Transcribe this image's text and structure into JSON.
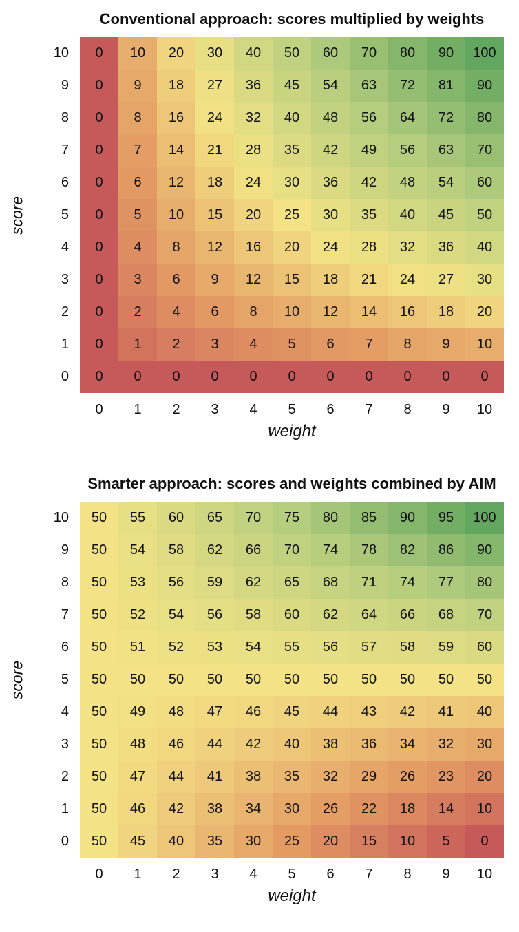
{
  "colormap": {
    "stops": [
      {
        "t": 0.0,
        "color": "#c65959"
      },
      {
        "t": 0.25,
        "color": "#e39a63"
      },
      {
        "t": 0.5,
        "color": "#f3e386"
      },
      {
        "t": 0.75,
        "color": "#b5cd7e"
      },
      {
        "t": 1.0,
        "color": "#63a65f"
      }
    ]
  },
  "chart_data": [
    {
      "type": "heatmap",
      "title": "Conventional approach: scores multiplied by weights",
      "xlabel": "weight",
      "ylabel": "score",
      "row_labels": [
        10,
        9,
        8,
        7,
        6,
        5,
        4,
        3,
        2,
        1,
        0
      ],
      "col_labels": [
        0,
        1,
        2,
        3,
        4,
        5,
        6,
        7,
        8,
        9,
        10
      ],
      "vmin": 0,
      "vmax": 100,
      "color_scale": "sqrt",
      "legend": "none",
      "grid": "off",
      "values": [
        [
          0,
          10,
          20,
          30,
          40,
          50,
          60,
          70,
          80,
          90,
          100
        ],
        [
          0,
          9,
          18,
          27,
          36,
          45,
          54,
          63,
          72,
          81,
          90
        ],
        [
          0,
          8,
          16,
          24,
          32,
          40,
          48,
          56,
          64,
          72,
          80
        ],
        [
          0,
          7,
          14,
          21,
          28,
          35,
          42,
          49,
          56,
          63,
          70
        ],
        [
          0,
          6,
          12,
          18,
          24,
          30,
          36,
          42,
          48,
          54,
          60
        ],
        [
          0,
          5,
          10,
          15,
          20,
          25,
          30,
          35,
          40,
          45,
          50
        ],
        [
          0,
          4,
          8,
          12,
          16,
          20,
          24,
          28,
          32,
          36,
          40
        ],
        [
          0,
          3,
          6,
          9,
          12,
          15,
          18,
          21,
          24,
          27,
          30
        ],
        [
          0,
          2,
          4,
          6,
          8,
          10,
          12,
          14,
          16,
          18,
          20
        ],
        [
          0,
          1,
          2,
          3,
          4,
          5,
          6,
          7,
          8,
          9,
          10
        ],
        [
          0,
          0,
          0,
          0,
          0,
          0,
          0,
          0,
          0,
          0,
          0
        ]
      ]
    },
    {
      "type": "heatmap",
      "title": "Smarter approach: scores and weights combined by AIM",
      "xlabel": "weight",
      "ylabel": "score",
      "row_labels": [
        10,
        9,
        8,
        7,
        6,
        5,
        4,
        3,
        2,
        1,
        0
      ],
      "col_labels": [
        0,
        1,
        2,
        3,
        4,
        5,
        6,
        7,
        8,
        9,
        10
      ],
      "vmin": 0,
      "vmax": 100,
      "color_scale": "linear",
      "legend": "none",
      "grid": "off",
      "values": [
        [
          50,
          55,
          60,
          65,
          70,
          75,
          80,
          85,
          90,
          95,
          100
        ],
        [
          50,
          54,
          58,
          62,
          66,
          70,
          74,
          78,
          82,
          86,
          90
        ],
        [
          50,
          53,
          56,
          59,
          62,
          65,
          68,
          71,
          74,
          77,
          80
        ],
        [
          50,
          52,
          54,
          56,
          58,
          60,
          62,
          64,
          66,
          68,
          70
        ],
        [
          50,
          51,
          52,
          53,
          54,
          55,
          56,
          57,
          58,
          59,
          60
        ],
        [
          50,
          50,
          50,
          50,
          50,
          50,
          50,
          50,
          50,
          50,
          50
        ],
        [
          50,
          49,
          48,
          47,
          46,
          45,
          44,
          43,
          42,
          41,
          40
        ],
        [
          50,
          48,
          46,
          44,
          42,
          40,
          38,
          36,
          34,
          32,
          30
        ],
        [
          50,
          47,
          44,
          41,
          38,
          35,
          32,
          29,
          26,
          23,
          20
        ],
        [
          50,
          46,
          42,
          38,
          34,
          30,
          26,
          22,
          18,
          14,
          10
        ],
        [
          50,
          45,
          40,
          35,
          30,
          25,
          20,
          15,
          10,
          5,
          0
        ]
      ]
    }
  ]
}
